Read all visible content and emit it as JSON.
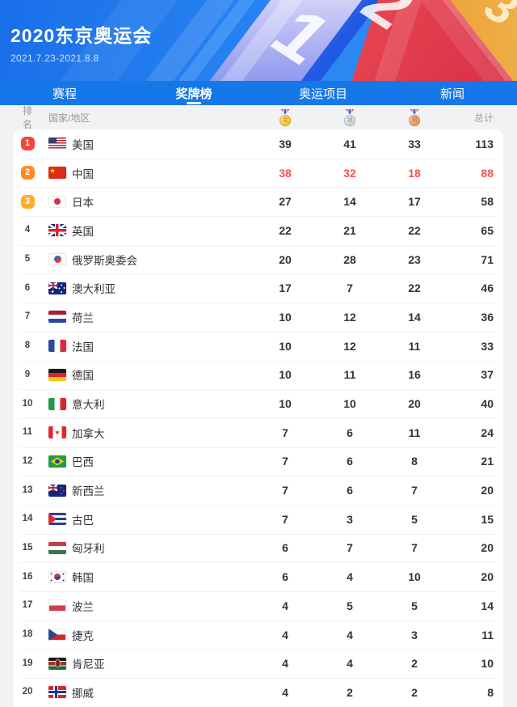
{
  "header": {
    "title": "2020东京奥运会",
    "date_range": "2021.7.23-2021.8.8",
    "art_numbers": [
      "1",
      "2",
      "3"
    ]
  },
  "nav": {
    "tabs": [
      {
        "label": "赛程",
        "active": false
      },
      {
        "label": "奖牌榜",
        "active": true
      },
      {
        "label": "奥运项目",
        "active": false
      },
      {
        "label": "新闻",
        "active": false
      }
    ]
  },
  "table": {
    "columns": {
      "rank": "排名",
      "country": "国家/地区",
      "total": "总计"
    },
    "medal_icons": [
      {
        "name": "gold-medal-icon",
        "char": "金"
      },
      {
        "name": "silver-medal-icon",
        "char": "银"
      },
      {
        "name": "bronze-medal-icon",
        "char": "铜"
      }
    ],
    "rows": [
      {
        "rank": 1,
        "flag": "us",
        "name": "美国",
        "gold": 39,
        "silver": 41,
        "bronze": 33,
        "total": 113,
        "highlight": false
      },
      {
        "rank": 2,
        "flag": "cn",
        "name": "中国",
        "gold": 38,
        "silver": 32,
        "bronze": 18,
        "total": 88,
        "highlight": true
      },
      {
        "rank": 3,
        "flag": "jp",
        "name": "日本",
        "gold": 27,
        "silver": 14,
        "bronze": 17,
        "total": 58,
        "highlight": false
      },
      {
        "rank": 4,
        "flag": "gb",
        "name": "英国",
        "gold": 22,
        "silver": 21,
        "bronze": 22,
        "total": 65,
        "highlight": false
      },
      {
        "rank": 5,
        "flag": "roc",
        "name": "俄罗斯奥委会",
        "gold": 20,
        "silver": 28,
        "bronze": 23,
        "total": 71,
        "highlight": false
      },
      {
        "rank": 6,
        "flag": "au",
        "name": "澳大利亚",
        "gold": 17,
        "silver": 7,
        "bronze": 22,
        "total": 46,
        "highlight": false
      },
      {
        "rank": 7,
        "flag": "nl",
        "name": "荷兰",
        "gold": 10,
        "silver": 12,
        "bronze": 14,
        "total": 36,
        "highlight": false
      },
      {
        "rank": 8,
        "flag": "fr",
        "name": "法国",
        "gold": 10,
        "silver": 12,
        "bronze": 11,
        "total": 33,
        "highlight": false
      },
      {
        "rank": 9,
        "flag": "de",
        "name": "德国",
        "gold": 10,
        "silver": 11,
        "bronze": 16,
        "total": 37,
        "highlight": false
      },
      {
        "rank": 10,
        "flag": "it",
        "name": "意大利",
        "gold": 10,
        "silver": 10,
        "bronze": 20,
        "total": 40,
        "highlight": false
      },
      {
        "rank": 11,
        "flag": "ca",
        "name": "加拿大",
        "gold": 7,
        "silver": 6,
        "bronze": 11,
        "total": 24,
        "highlight": false
      },
      {
        "rank": 12,
        "flag": "br",
        "name": "巴西",
        "gold": 7,
        "silver": 6,
        "bronze": 8,
        "total": 21,
        "highlight": false
      },
      {
        "rank": 13,
        "flag": "nz",
        "name": "新西兰",
        "gold": 7,
        "silver": 6,
        "bronze": 7,
        "total": 20,
        "highlight": false
      },
      {
        "rank": 14,
        "flag": "cu",
        "name": "古巴",
        "gold": 7,
        "silver": 3,
        "bronze": 5,
        "total": 15,
        "highlight": false
      },
      {
        "rank": 15,
        "flag": "hu",
        "name": "匈牙利",
        "gold": 6,
        "silver": 7,
        "bronze": 7,
        "total": 20,
        "highlight": false
      },
      {
        "rank": 16,
        "flag": "kr",
        "name": "韩国",
        "gold": 6,
        "silver": 4,
        "bronze": 10,
        "total": 20,
        "highlight": false
      },
      {
        "rank": 17,
        "flag": "pl",
        "name": "波兰",
        "gold": 4,
        "silver": 5,
        "bronze": 5,
        "total": 14,
        "highlight": false
      },
      {
        "rank": 18,
        "flag": "cz",
        "name": "捷克",
        "gold": 4,
        "silver": 4,
        "bronze": 3,
        "total": 11,
        "highlight": false
      },
      {
        "rank": 19,
        "flag": "ke",
        "name": "肯尼亚",
        "gold": 4,
        "silver": 4,
        "bronze": 2,
        "total": 10,
        "highlight": false
      },
      {
        "rank": 20,
        "flag": "no",
        "name": "挪威",
        "gold": 4,
        "silver": 2,
        "bronze": 2,
        "total": 8,
        "highlight": false
      }
    ]
  },
  "colors": {
    "accent_blue": "#1677e8",
    "highlight_red": "#fa4f4f",
    "rank1_badge": "#f4443b",
    "rank2_badge": "#fb8c2c",
    "rank3_badge": "#fcae27"
  }
}
